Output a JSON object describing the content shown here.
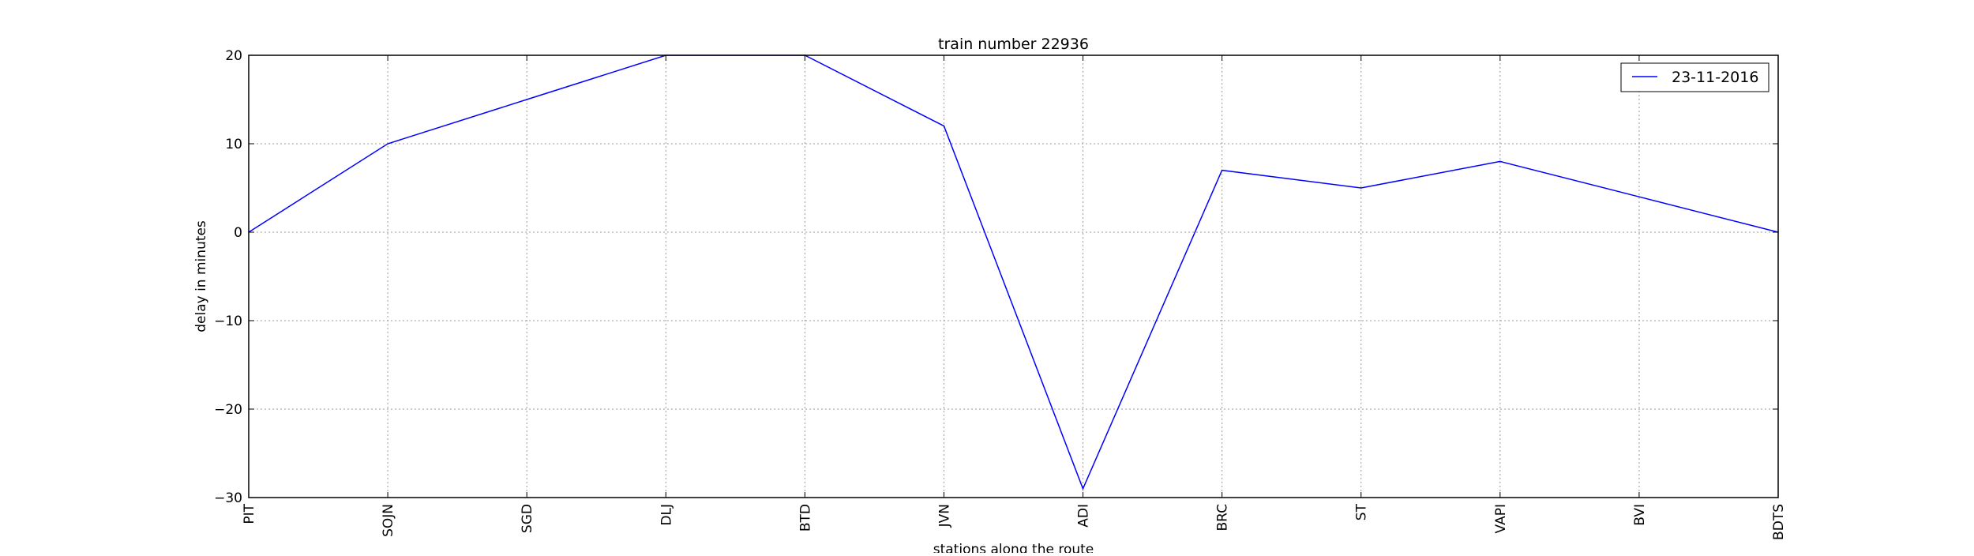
{
  "chart_data": {
    "type": "line",
    "title": "train number 22936",
    "xlabel": "stations along the route",
    "ylabel": "delay in minutes",
    "categories": [
      "PIT",
      "SOJN",
      "SGD",
      "DLJ",
      "BTD",
      "JVN",
      "ADI",
      "BRC",
      "ST",
      "VAPI",
      "BVI",
      "BDTS"
    ],
    "series": [
      {
        "name": "23-11-2016",
        "values": [
          0,
          10,
          15,
          20,
          20,
          12,
          -29,
          7,
          5,
          8,
          4,
          0
        ],
        "color": "#0000ff"
      }
    ],
    "ylim": [
      -30,
      20
    ],
    "yticks": [
      20,
      10,
      0,
      -10,
      -20,
      -30
    ],
    "ytick_labels": [
      "20",
      "10",
      "0",
      "−10",
      "−20",
      "−30"
    ],
    "grid": true,
    "legend_position": "top-right"
  }
}
